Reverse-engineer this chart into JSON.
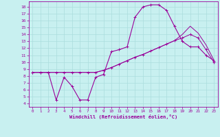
{
  "xlabel": "Windchill (Refroidissement éolien,°C)",
  "bg_color": "#c8f0f0",
  "line_color": "#990099",
  "grid_color": "#aadddd",
  "xlim": [
    -0.5,
    23.5
  ],
  "ylim": [
    3.5,
    18.8
  ],
  "xticks": [
    0,
    1,
    2,
    3,
    4,
    5,
    6,
    7,
    8,
    9,
    10,
    11,
    12,
    13,
    14,
    15,
    16,
    17,
    18,
    19,
    20,
    21,
    22,
    23
  ],
  "yticks": [
    4,
    5,
    6,
    7,
    8,
    9,
    10,
    11,
    12,
    13,
    14,
    15,
    16,
    17,
    18
  ],
  "line1_x": [
    0,
    1,
    2,
    3,
    4,
    5,
    6,
    7,
    8,
    9,
    10,
    11,
    12,
    13,
    14,
    15,
    16,
    17,
    18,
    19,
    20,
    21,
    22,
    23
  ],
  "line1_y": [
    8.5,
    8.5,
    8.5,
    8.5,
    8.5,
    8.5,
    8.5,
    8.5,
    8.5,
    8.8,
    9.2,
    9.7,
    10.2,
    10.7,
    11.1,
    11.6,
    12.1,
    12.6,
    13.1,
    13.5,
    14.0,
    13.5,
    11.8,
    10.0
  ],
  "line2_x": [
    0,
    1,
    2,
    3,
    4,
    5,
    6,
    7,
    8,
    9,
    10,
    11,
    12,
    13,
    14,
    15,
    16,
    17,
    18,
    19,
    20,
    21,
    22,
    23
  ],
  "line2_y": [
    8.5,
    8.5,
    8.5,
    8.5,
    8.5,
    8.5,
    8.5,
    8.5,
    8.5,
    8.8,
    9.2,
    9.7,
    10.2,
    10.7,
    11.1,
    11.6,
    12.1,
    12.6,
    13.1,
    14.0,
    15.2,
    14.2,
    12.5,
    10.3
  ],
  "curve_x": [
    0,
    1,
    2,
    3,
    4,
    5,
    6,
    7,
    8,
    9,
    10,
    11,
    12,
    13,
    14,
    15,
    16,
    17,
    18,
    19,
    20,
    21,
    22,
    23
  ],
  "curve_y": [
    8.5,
    8.5,
    8.5,
    4.5,
    7.8,
    6.5,
    4.5,
    4.5,
    7.8,
    8.2,
    11.5,
    11.8,
    12.2,
    16.5,
    18.0,
    18.3,
    18.3,
    17.5,
    15.2,
    13.0,
    12.2,
    12.2,
    11.0,
    10.2
  ],
  "marker": "+"
}
